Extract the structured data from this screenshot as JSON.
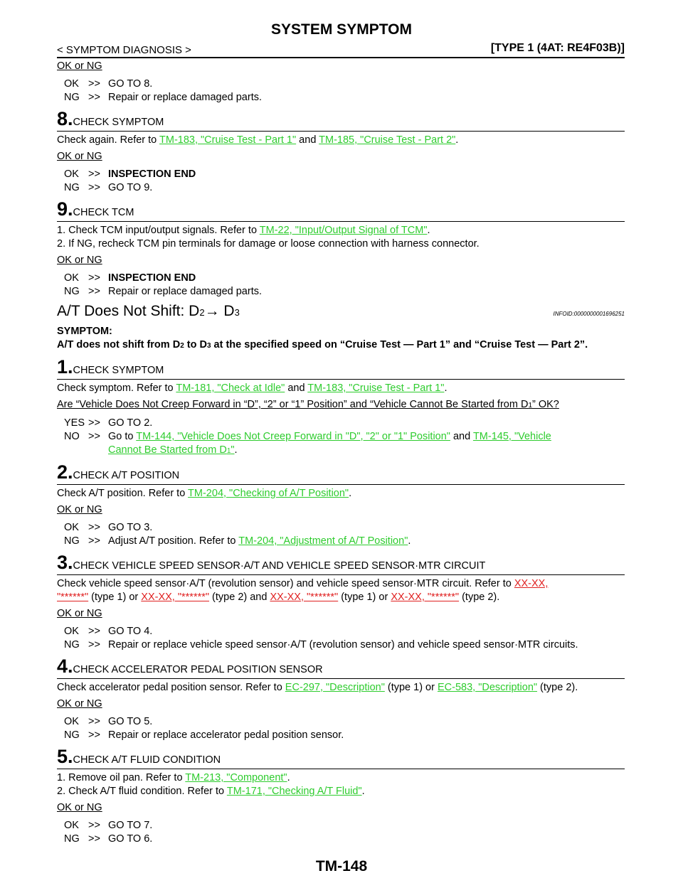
{
  "header": {
    "title": "SYSTEM SYMPTOM",
    "left": "< SYMPTOM DIAGNOSIS >",
    "right": "[TYPE 1 (4AT: RE4F03B)]"
  },
  "footer": {
    "page": "TM-148"
  },
  "top": {
    "ok_or_ng": "OK or NG",
    "ok": "OK",
    "ok_action": "GO TO 8.",
    "ng": "NG",
    "ng_action": "Repair or replace damaged parts."
  },
  "step8": {
    "num": "8.",
    "title": "CHECK SYMPTOM",
    "text_a": "Check again. Refer to ",
    "link1": "TM-183, \"Cruise Test - Part 1\"",
    "text_b": " and ",
    "link2": "TM-185, \"Cruise Test - Part 2\"",
    "text_c": ".",
    "ok_or_ng": "OK or NG",
    "ok": "OK",
    "ok_action": "INSPECTION END",
    "ng": "NG",
    "ng_action": "GO TO 9."
  },
  "step9": {
    "num": "9.",
    "title": "CHECK TCM",
    "line1_a": "1.  Check TCM input/output signals. Refer to ",
    "line1_link": "TM-22, \"Input/Output Signal of TCM\"",
    "line1_b": ".",
    "line2": "2.  If NG, recheck TCM pin terminals for damage or loose connection with harness connector.",
    "ok_or_ng": "OK or NG",
    "ok": "OK",
    "ok_action": "INSPECTION END",
    "ng": "NG",
    "ng_action": "Repair or replace damaged parts."
  },
  "section": {
    "title_a": "A/T Does Not Shift: D",
    "title_sub1": "2",
    "title_arrow": "→ D",
    "title_sub2": "3",
    "info_id": "INFOID:0000000001696251",
    "symptom_label": "SYMPTOM:",
    "symptom_a": "A/T does not shift from D",
    "symptom_sub1": "2",
    "symptom_b": " to D",
    "symptom_sub2": "3",
    "symptom_c": " at the specified speed on “Cruise Test — Part 1” and “Cruise Test — Part 2”."
  },
  "s1": {
    "num": "1.",
    "title": "CHECK SYMPTOM",
    "text_a": "Check symptom. Refer to ",
    "link1": "TM-181, \"Check at Idle\"",
    "text_b": " and ",
    "link2": "TM-183, \"Cruise Test - Part 1\"",
    "text_c": ".",
    "question_a": "Are “Vehicle Does Not Creep Forward in “D”, “2” or “1” Position” and “Vehicle Cannot Be Started from D",
    "question_sub": "1",
    "question_b": "” OK?",
    "yes": "YES",
    "yes_action": "GO TO 2.",
    "no": "NO",
    "no_a": "Go to ",
    "no_link1": "TM-144, \"Vehicle Does Not Creep Forward in \"D\", \"2\" or \"1\" Position\"",
    "no_b": " and ",
    "no_link2a": "TM-145, \"Vehicle",
    "no_link2b": "Cannot Be Started from D",
    "no_link2_sub": "1",
    "no_link2c": "\"",
    "no_c": "."
  },
  "s2": {
    "num": "2.",
    "title": "CHECK A/T POSITION",
    "text_a": "Check A/T position. Refer to ",
    "link": "TM-204, \"Checking of A/T Position\"",
    "text_b": ".",
    "ok_or_ng": "OK or NG",
    "ok": "OK",
    "ok_action": "GO TO 3.",
    "ng": "NG",
    "ng_a": "Adjust A/T position. Refer to ",
    "ng_link": "TM-204, \"Adjustment of A/T Position\"",
    "ng_b": "."
  },
  "s3": {
    "num": "3.",
    "title": "CHECK VEHICLE SPEED SENSOR·A/T AND VEHICLE SPEED SENSOR·MTR CIRCUIT",
    "text_a": "Check vehicle speed sensor·A/T (revolution sensor) and vehicle speed sensor·MTR circuit. Refer to ",
    "link1a": "XX-XX,",
    "link1b": "\"******\"",
    "text_b": " (type 1) or ",
    "link2": "XX-XX, \"******\"",
    "text_c": " (type 2) and ",
    "link3": "XX-XX, \"******\"",
    "text_d": " (type 1) or ",
    "link4": "XX-XX, \"******\"",
    "text_e": " (type 2).",
    "ok_or_ng": "OK or NG",
    "ok": "OK",
    "ok_action": "GO TO 4.",
    "ng": "NG",
    "ng_action": "Repair or replace vehicle speed sensor·A/T (revolution sensor) and vehicle speed sensor·MTR circuits."
  },
  "s4": {
    "num": "4.",
    "title": "CHECK ACCELERATOR PEDAL POSITION SENSOR",
    "text_a": "Check accelerator pedal position sensor. Refer to ",
    "link1": "EC-297, \"Description\"",
    "text_b": " (type 1) or ",
    "link2": "EC-583, \"Description\"",
    "text_c": " (type 2).",
    "ok_or_ng": "OK or NG",
    "ok": "OK",
    "ok_action": "GO TO 5.",
    "ng": "NG",
    "ng_action": "Repair or replace accelerator pedal position sensor."
  },
  "s5": {
    "num": "5.",
    "title": "CHECK A/T FLUID CONDITION",
    "line1_a": "1.  Remove oil pan. Refer to ",
    "line1_link": "TM-213, \"Component\"",
    "line1_b": ".",
    "line2_a": "2.  Check A/T fluid condition. Refer to ",
    "line2_link": "TM-171, \"Checking A/T Fluid\"",
    "line2_b": ".",
    "ok_or_ng": "OK or NG",
    "ok": "OK",
    "ok_action": "GO TO 7.",
    "ng": "NG",
    "ng_action": "GO TO 6."
  },
  "arrows": ">>",
  "colors": {
    "link": "#2ecc2e",
    "red_link": "#e02020"
  }
}
